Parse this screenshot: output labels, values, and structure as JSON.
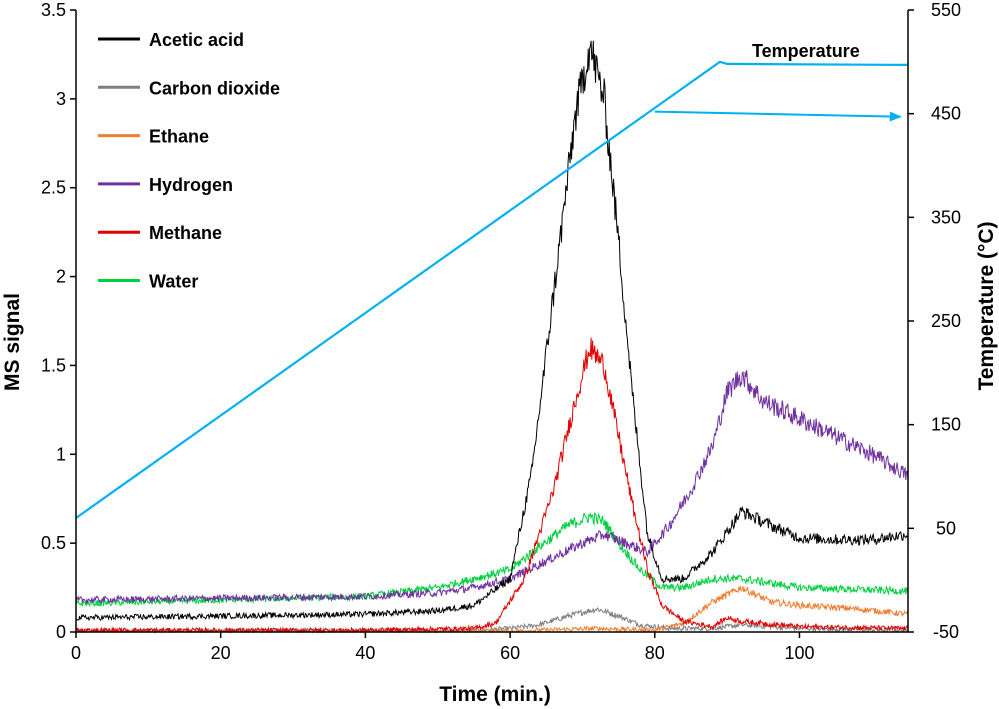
{
  "chart_data": {
    "type": "line",
    "xlabel": "Time (min.)",
    "ylabel": "MS signal",
    "y2label": "Temperature (°C)",
    "xlim": [
      0,
      115
    ],
    "ylim": [
      0,
      3.5
    ],
    "y2lim": [
      -50,
      550
    ],
    "x_ticks": [
      "0",
      "20",
      "40",
      "60",
      "80",
      "100"
    ],
    "y_ticks": [
      "0",
      "0.5",
      "1",
      "1.5",
      "2",
      "2.5",
      "3",
      "3.5"
    ],
    "y2_ticks": [
      "-50",
      "50",
      "150",
      "250",
      "350",
      "450",
      "550"
    ],
    "grid": false,
    "legend_position": "top-left",
    "series": [
      {
        "name": "Acetic acid",
        "color": "#000000",
        "axis": "left",
        "x": [
          0,
          20,
          40,
          50,
          55,
          60,
          63,
          66,
          69,
          71,
          73,
          75,
          77,
          79,
          81,
          84,
          88,
          92,
          96,
          100,
          105,
          110,
          115
        ],
        "y": [
          0.08,
          0.09,
          0.1,
          0.12,
          0.15,
          0.3,
          0.9,
          1.9,
          2.9,
          3.3,
          3.0,
          2.2,
          1.3,
          0.55,
          0.3,
          0.3,
          0.45,
          0.68,
          0.6,
          0.53,
          0.52,
          0.52,
          0.55
        ]
      },
      {
        "name": "Carbon dioxide",
        "color": "#7f7f7f",
        "axis": "left",
        "x": [
          0,
          55,
          60,
          64,
          68,
          72,
          75,
          78,
          82,
          88,
          92,
          100,
          115
        ],
        "y": [
          0.005,
          0.01,
          0.02,
          0.04,
          0.09,
          0.13,
          0.09,
          0.04,
          0.02,
          0.02,
          0.04,
          0.02,
          0.01
        ]
      },
      {
        "name": "Ethane",
        "color": "#ed7d31",
        "axis": "left",
        "x": [
          0,
          60,
          72,
          80,
          84,
          88,
          92,
          96,
          100,
          108,
          115
        ],
        "y": [
          0.0,
          0.005,
          0.02,
          0.01,
          0.05,
          0.17,
          0.25,
          0.17,
          0.15,
          0.13,
          0.1
        ]
      },
      {
        "name": "Hydrogen",
        "color": "#7030a0",
        "axis": "left",
        "x": [
          0,
          20,
          40,
          50,
          55,
          60,
          65,
          70,
          73,
          76,
          79,
          82,
          85,
          88,
          90,
          92,
          95,
          100,
          105,
          110,
          115
        ],
        "y": [
          0.18,
          0.19,
          0.2,
          0.22,
          0.25,
          0.3,
          0.4,
          0.5,
          0.55,
          0.5,
          0.45,
          0.6,
          0.8,
          1.05,
          1.35,
          1.45,
          1.3,
          1.2,
          1.1,
          1.0,
          0.88
        ]
      },
      {
        "name": "Methane",
        "color": "#e00000",
        "axis": "left",
        "x": [
          0,
          40,
          55,
          58,
          62,
          66,
          69,
          71,
          73,
          75,
          77,
          79,
          81,
          84,
          88,
          90,
          92,
          100,
          115
        ],
        "y": [
          0.01,
          0.01,
          0.02,
          0.05,
          0.3,
          0.8,
          1.3,
          1.6,
          1.5,
          1.1,
          0.7,
          0.35,
          0.15,
          0.06,
          0.03,
          0.08,
          0.06,
          0.03,
          0.02
        ]
      },
      {
        "name": "Water",
        "color": "#00d040",
        "axis": "left",
        "x": [
          0,
          20,
          40,
          50,
          55,
          60,
          64,
          68,
          71,
          73,
          75,
          78,
          81,
          84,
          88,
          92,
          100,
          115
        ],
        "y": [
          0.16,
          0.18,
          0.2,
          0.25,
          0.3,
          0.35,
          0.48,
          0.6,
          0.65,
          0.62,
          0.5,
          0.35,
          0.25,
          0.25,
          0.3,
          0.3,
          0.25,
          0.23
        ]
      },
      {
        "name": "Temperature",
        "color": "#00b0f0",
        "axis": "right",
        "x": [
          0,
          89,
          90,
          115
        ],
        "y": [
          60,
          500,
          498,
          497
        ]
      }
    ],
    "annotations": [
      {
        "text": "Temperature",
        "arrow_from": [
          80,
          452
        ],
        "arrow_to": [
          114,
          447
        ],
        "axis": "right"
      }
    ]
  }
}
